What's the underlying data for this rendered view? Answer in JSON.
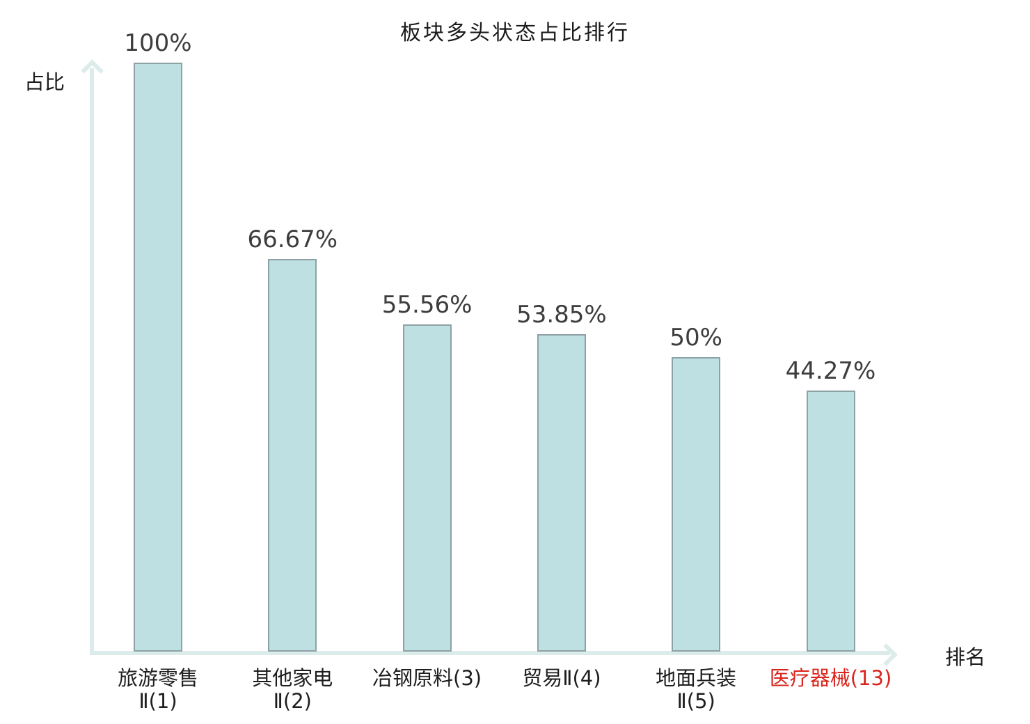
{
  "chart_data": {
    "type": "bar",
    "title": "板块多头状态占比排行",
    "xlabel": "排名",
    "ylabel": "占比",
    "categories": [
      "旅游零售Ⅱ(1)",
      "其他家电Ⅱ(2)",
      "冶钢原料(3)",
      "贸易Ⅱ(4)",
      "地面兵装Ⅱ(5)",
      "医疗器械(13)"
    ],
    "category_lines": [
      [
        "旅游零售",
        "Ⅱ(1)"
      ],
      [
        "其他家电",
        "Ⅱ(2)"
      ],
      [
        "冶钢原料(3)"
      ],
      [
        "贸易Ⅱ(4)"
      ],
      [
        "地面兵装",
        "Ⅱ(5)"
      ],
      [
        "医疗器械(13)"
      ]
    ],
    "values": [
      100,
      66.67,
      55.56,
      53.85,
      50,
      44.27
    ],
    "value_labels": [
      "100%",
      "66.67%",
      "55.56%",
      "53.85%",
      "50%",
      "44.27%"
    ],
    "highlight_index": 5,
    "ylim": [
      0,
      100
    ],
    "grid": false,
    "legend": "none",
    "colors": {
      "bar_fill": "#bfe0e3",
      "bar_border": "#8da2a4",
      "axis": "#dcecea",
      "value_label": "#3d3d3d",
      "category_label": "#1e1e1e",
      "highlight_label": "#d9251d",
      "title": "#1a1a1a"
    }
  }
}
